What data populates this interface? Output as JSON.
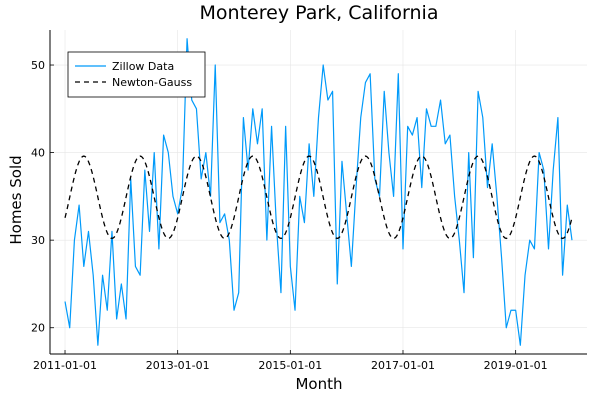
{
  "chart_data": {
    "type": "line",
    "title": "Monterey Park, California",
    "xlabel": "Month",
    "ylabel": "Homes Sold",
    "x_start": "2011-01",
    "x_step": "month",
    "x_ticks": [
      "2011-01-01",
      "2013-01-01",
      "2015-01-01",
      "2017-01-01",
      "2019-01-01"
    ],
    "y_ticks": [
      20,
      30,
      40,
      50
    ],
    "ylim": [
      17,
      54
    ],
    "grid": true,
    "legend_position": "top-left",
    "series": [
      {
        "name": "Zillow Data",
        "color": "#009AFA",
        "style": "solid",
        "values": [
          23,
          20,
          30,
          34,
          27,
          31,
          26,
          18,
          26,
          22,
          31,
          21,
          25,
          21,
          37,
          27,
          26,
          38,
          31,
          40,
          29,
          42,
          40,
          35,
          33,
          36,
          53,
          46,
          45,
          37,
          40,
          35,
          50,
          32,
          33,
          30,
          22,
          24,
          44,
          38,
          45,
          41,
          45,
          30,
          43,
          32,
          24,
          43,
          27,
          22,
          35,
          32,
          41,
          35,
          44,
          50,
          46,
          47,
          25,
          39,
          33,
          27,
          36,
          44,
          48,
          49,
          37,
          35,
          47,
          40,
          35,
          49,
          29,
          43,
          42,
          44,
          36,
          45,
          43,
          43,
          46,
          41,
          42,
          35,
          30,
          24,
          40,
          28,
          47,
          44,
          36,
          41,
          35,
          28,
          20,
          22,
          22,
          18,
          26,
          30,
          29,
          40,
          38,
          29,
          38,
          44,
          26,
          34,
          30
        ]
      },
      {
        "name": "Newton-Gauss",
        "color": "#000000",
        "style": "dashed",
        "mean": 34.9,
        "amplitude": 4.7,
        "period_months": 12,
        "peak_month_offset": 4
      }
    ]
  }
}
